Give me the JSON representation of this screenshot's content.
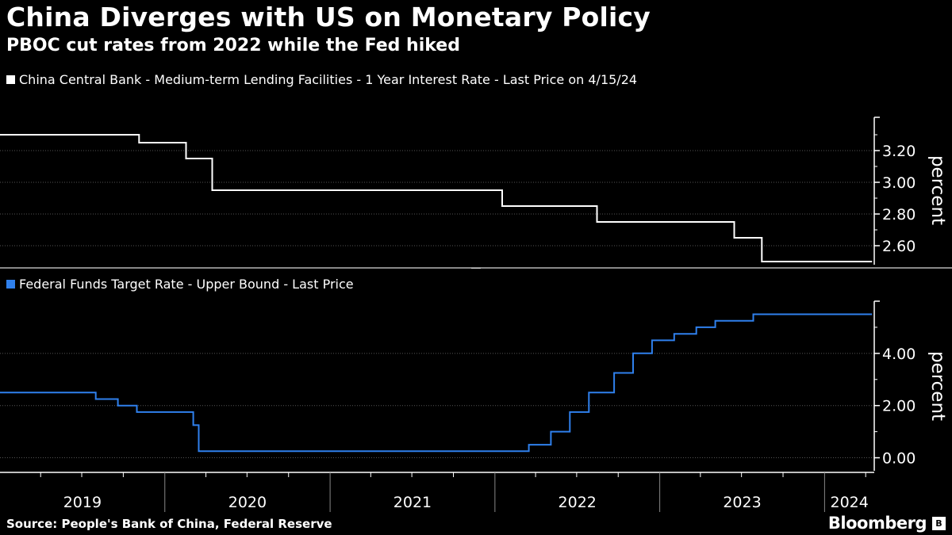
{
  "title": "China Diverges with US on Monetary Policy",
  "subtitle": "PBOC cut rates from 2022 while the Fed hiked",
  "source": "Source: People's Bank of China, Federal Reserve",
  "brand": "Bloomberg",
  "brand_mark": "B",
  "colors": {
    "background": "#000000",
    "china_line": "#ffffff",
    "fed_line": "#2f80ed",
    "grid": "#555555"
  },
  "chart_data": [
    {
      "type": "line",
      "series": [
        {
          "name": "China Central Bank - Medium-term Lending Facilities - 1 Year Interest Rate - Last Price on 4/15/24",
          "step": true,
          "points": [
            [
              "2019-01-01",
              3.3
            ],
            [
              "2019-11-05",
              3.25
            ],
            [
              "2020-02-17",
              3.15
            ],
            [
              "2020-04-15",
              2.95
            ],
            [
              "2022-01-17",
              2.85
            ],
            [
              "2022-08-15",
              2.75
            ],
            [
              "2023-06-15",
              2.65
            ],
            [
              "2023-08-15",
              2.5
            ],
            [
              "2024-04-15",
              2.5
            ]
          ]
        }
      ],
      "ylabel": "percent",
      "yticks": [
        2.6,
        2.8,
        3.0,
        3.2
      ],
      "ytick_labels": [
        "2.60",
        "2.80",
        "3.00",
        "3.20"
      ],
      "ylim": [
        2.48,
        3.42
      ],
      "grid": true
    },
    {
      "type": "line",
      "series": [
        {
          "name": "Federal Funds Target Rate - Upper Bound - Last Price",
          "step": true,
          "points": [
            [
              "2019-01-01",
              2.5
            ],
            [
              "2019-08-01",
              2.25
            ],
            [
              "2019-09-19",
              2.0
            ],
            [
              "2019-10-31",
              1.75
            ],
            [
              "2020-03-04",
              1.25
            ],
            [
              "2020-03-16",
              0.25
            ],
            [
              "2022-03-17",
              0.5
            ],
            [
              "2022-05-05",
              1.0
            ],
            [
              "2022-06-16",
              1.75
            ],
            [
              "2022-07-28",
              2.5
            ],
            [
              "2022-09-22",
              3.25
            ],
            [
              "2022-11-03",
              4.0
            ],
            [
              "2022-12-15",
              4.5
            ],
            [
              "2023-02-02",
              4.75
            ],
            [
              "2023-03-23",
              5.0
            ],
            [
              "2023-05-04",
              5.25
            ],
            [
              "2023-07-27",
              5.5
            ],
            [
              "2024-04-15",
              5.5
            ]
          ]
        }
      ],
      "ylabel": "percent",
      "yticks": [
        0,
        2,
        4
      ],
      "ytick_labels": [
        "0.00",
        "2.00",
        "4.00"
      ],
      "ylim": [
        -0.5,
        6.0
      ],
      "grid": true
    }
  ],
  "x_axis": {
    "range": [
      "2019-01-01",
      "2024-04-20"
    ],
    "year_labels": [
      "2019",
      "2020",
      "2021",
      "2022",
      "2023",
      "2024"
    ]
  }
}
